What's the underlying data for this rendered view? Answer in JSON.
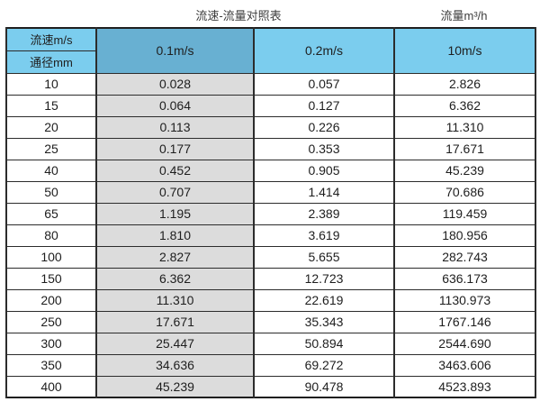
{
  "titles": {
    "left": "流速-流量对照表",
    "right": "流量m³/h"
  },
  "table": {
    "corner_top": "流速m/s",
    "corner_bottom": "通径mm",
    "columns": [
      "0.1m/s",
      "0.2m/s",
      "10m/s"
    ],
    "rows": [
      {
        "diameter": "10",
        "values": [
          "0.028",
          "0.057",
          "2.826"
        ]
      },
      {
        "diameter": "15",
        "values": [
          "0.064",
          "0.127",
          "6.362"
        ]
      },
      {
        "diameter": "20",
        "values": [
          "0.113",
          "0.226",
          "11.310"
        ]
      },
      {
        "diameter": "25",
        "values": [
          "0.177",
          "0.353",
          "17.671"
        ]
      },
      {
        "diameter": "40",
        "values": [
          "0.452",
          "0.905",
          "45.239"
        ]
      },
      {
        "diameter": "50",
        "values": [
          "0.707",
          "1.414",
          "70.686"
        ]
      },
      {
        "diameter": "65",
        "values": [
          "1.195",
          "2.389",
          "119.459"
        ]
      },
      {
        "diameter": "80",
        "values": [
          "1.810",
          "3.619",
          "180.956"
        ]
      },
      {
        "diameter": "100",
        "values": [
          "2.827",
          "5.655",
          "282.743"
        ]
      },
      {
        "diameter": "150",
        "values": [
          "6.362",
          "12.723",
          "636.173"
        ]
      },
      {
        "diameter": "200",
        "values": [
          "11.310",
          "22.619",
          "1130.973"
        ]
      },
      {
        "diameter": "250",
        "values": [
          "17.671",
          "35.343",
          "1767.146"
        ]
      },
      {
        "diameter": "300",
        "values": [
          "25.447",
          "50.894",
          "2544.690"
        ]
      },
      {
        "diameter": "350",
        "values": [
          "34.636",
          "69.272",
          "3463.606"
        ]
      },
      {
        "diameter": "400",
        "values": [
          "45.239",
          "90.478",
          "4523.893"
        ]
      }
    ]
  },
  "colors": {
    "header_light_blue": "#7bcdee",
    "header_dark_blue": "#68b0d2",
    "highlight_column_gray": "#dcdcdc",
    "border": "#2c2c2c",
    "text": "#1e1e1e"
  },
  "chart_data": {
    "type": "table",
    "title": "流速-流量对照表",
    "unit_label": "流量m³/h",
    "row_axis_label": "通径mm",
    "column_axis_label": "流速m/s",
    "categories": [
      10,
      15,
      20,
      25,
      40,
      50,
      65,
      80,
      100,
      150,
      200,
      250,
      300,
      350,
      400
    ],
    "series": [
      {
        "name": "0.1m/s",
        "values": [
          0.028,
          0.064,
          0.113,
          0.177,
          0.452,
          0.707,
          1.195,
          1.81,
          2.827,
          6.362,
          11.31,
          17.671,
          25.447,
          34.636,
          45.239
        ]
      },
      {
        "name": "0.2m/s",
        "values": [
          0.057,
          0.127,
          0.226,
          0.353,
          0.905,
          1.414,
          2.389,
          3.619,
          5.655,
          12.723,
          22.619,
          35.343,
          50.894,
          69.272,
          90.478
        ]
      },
      {
        "name": "10m/s",
        "values": [
          2.826,
          6.362,
          11.31,
          17.671,
          45.239,
          70.686,
          119.459,
          180.956,
          282.743,
          636.173,
          1130.973,
          1767.146,
          2544.69,
          3463.606,
          4523.893
        ]
      }
    ]
  }
}
